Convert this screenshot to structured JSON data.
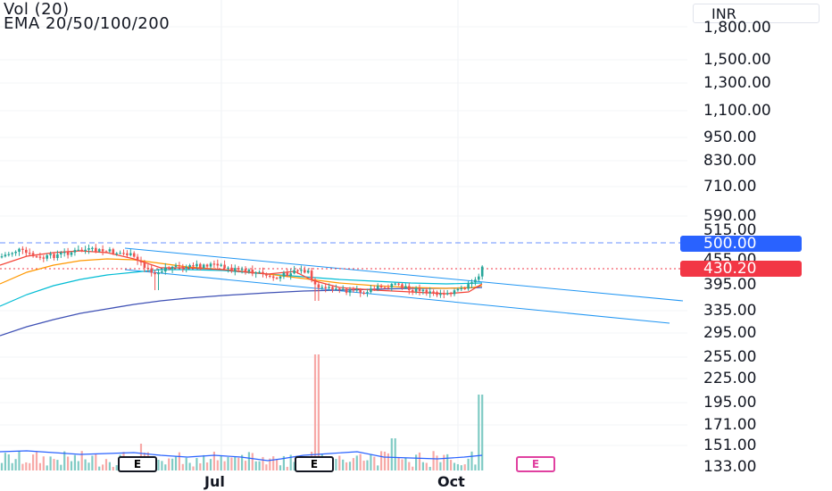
{
  "legend": {
    "volume": "Vol (20)",
    "ema": "EMA 20/50/100/200"
  },
  "price_scale": {
    "currency": "INR",
    "ticks": [
      "1,800.00",
      "1,500.00",
      "1,300.00",
      "1,100.00",
      "950.00",
      "830.00",
      "710.00",
      "590.00",
      "515.00",
      "455.00",
      "395.00",
      "335.00",
      "295.00",
      "255.00",
      "225.00",
      "195.00",
      "171.00",
      "151.00",
      "133.00"
    ],
    "alert_label": "500.00",
    "last_price_label": "430.20"
  },
  "time_axis": {
    "labels": [
      "Jul",
      "Oct"
    ]
  },
  "earnings": {
    "marker_1": "E",
    "marker_2": "E",
    "marker_3": "E"
  },
  "colors": {
    "bull": "#26a69a",
    "bear": "#ef5350",
    "alert_blue": "#2962ff",
    "last_price_red": "#f23645",
    "ema20": "#f44336",
    "ema50": "#ff9800",
    "ema100": "#00bcd4",
    "ema200": "#3f51b5",
    "trendline": "#2196f3",
    "volume_line": "#2962ff"
  }
}
